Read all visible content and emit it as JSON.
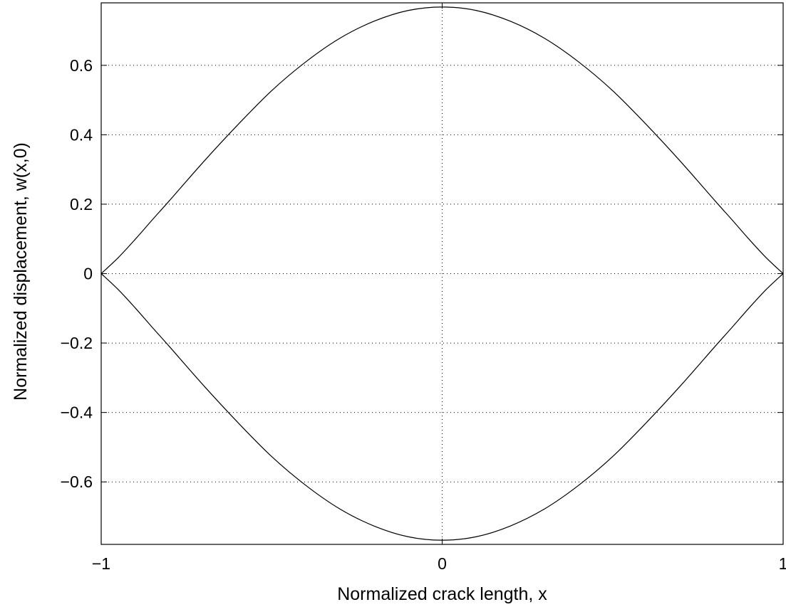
{
  "chart_data": {
    "type": "line",
    "title": "",
    "xlabel": "Normalized crack length, x",
    "ylabel": "Normalized displacement, w(x,0)",
    "xlim": [
      -1,
      1
    ],
    "ylim": [
      -0.78,
      0.78
    ],
    "grid": true,
    "legend": "none",
    "line_color": "#000000",
    "x_ticks": [
      {
        "value": -1,
        "label": "−1"
      },
      {
        "value": 0,
        "label": "0"
      },
      {
        "value": 1,
        "label": "1"
      }
    ],
    "y_ticks": [
      {
        "value": 0.6,
        "label": "0.6"
      },
      {
        "value": 0.4,
        "label": "0.4"
      },
      {
        "value": 0.2,
        "label": "0.2"
      },
      {
        "value": 0,
        "label": "0"
      },
      {
        "value": -0.2,
        "label": "−0.2"
      },
      {
        "value": -0.4,
        "label": "−0.4"
      },
      {
        "value": -0.6,
        "label": "−0.6"
      }
    ],
    "series": [
      {
        "x": [
          -1,
          -0.95,
          -0.9,
          -0.85,
          -0.8,
          -0.7,
          -0.6,
          -0.5,
          -0.4,
          -0.3,
          -0.2,
          -0.1,
          0,
          0.1,
          0.2,
          0.3,
          0.4,
          0.5,
          0.6,
          0.7,
          0.8,
          0.85,
          0.9,
          0.95,
          1
        ],
        "y": [
          0,
          0.046,
          0.099,
          0.155,
          0.21,
          0.322,
          0.428,
          0.527,
          0.61,
          0.678,
          0.727,
          0.758,
          0.768,
          0.758,
          0.727,
          0.678,
          0.61,
          0.527,
          0.428,
          0.322,
          0.21,
          0.155,
          0.099,
          0.046,
          0
        ]
      },
      {
        "x": [
          -1,
          -0.95,
          -0.9,
          -0.85,
          -0.8,
          -0.7,
          -0.6,
          -0.5,
          -0.4,
          -0.3,
          -0.2,
          -0.1,
          0,
          0.1,
          0.2,
          0.3,
          0.4,
          0.5,
          0.6,
          0.7,
          0.8,
          0.85,
          0.9,
          0.95,
          1
        ],
        "y": [
          0,
          -0.046,
          -0.099,
          -0.155,
          -0.21,
          -0.322,
          -0.428,
          -0.527,
          -0.61,
          -0.678,
          -0.727,
          -0.758,
          -0.768,
          -0.758,
          -0.727,
          -0.678,
          -0.61,
          -0.527,
          -0.428,
          -0.322,
          -0.21,
          -0.155,
          -0.099,
          -0.046,
          0
        ]
      }
    ]
  }
}
